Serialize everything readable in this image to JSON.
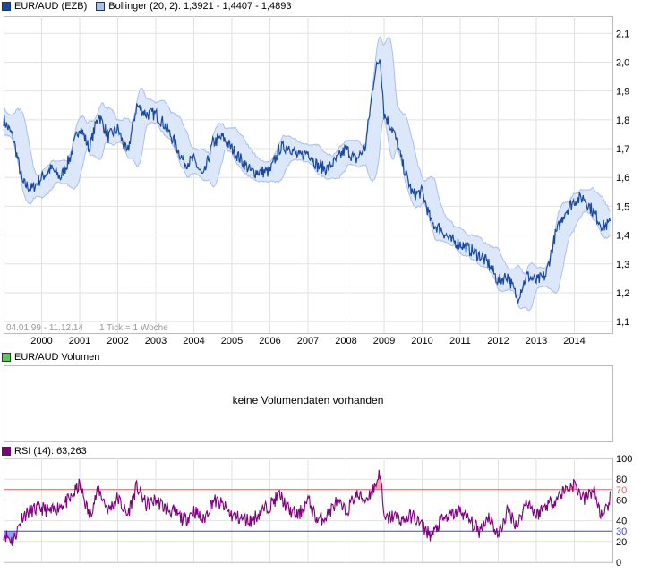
{
  "price_panel": {
    "legend": [
      {
        "label": "EUR/AUD (EZB)",
        "color": "#1a4aa0"
      },
      {
        "label": "Bollinger (20, 2): 1,3921 - 1,4407 - 1,4893",
        "color": "#a8c0ee"
      }
    ],
    "date_range": "04.01.99 - 11.12.14",
    "tick_note": "1 Tick = 1 Woche"
  },
  "volume_panel": {
    "legend": {
      "label": "EUR/AUD Volumen",
      "color": "#5ac85a"
    },
    "message": "keine Volumendaten vorhanden"
  },
  "rsi_panel": {
    "legend": {
      "label": "RSI (14): 63,263",
      "color": "#800080"
    }
  },
  "chart_data": [
    {
      "type": "line",
      "series": [
        {
          "name": "EUR/AUD (EZB)",
          "color": "#1a4aa0",
          "x": [
            1999.0,
            1999.25,
            1999.5,
            1999.75,
            2000.0,
            2000.25,
            2000.5,
            2000.75,
            2001.0,
            2001.25,
            2001.5,
            2001.75,
            2002.0,
            2002.25,
            2002.5,
            2002.75,
            2003.0,
            2003.25,
            2003.5,
            2003.75,
            2004.0,
            2004.25,
            2004.5,
            2004.75,
            2005.0,
            2005.25,
            2005.5,
            2005.75,
            2006.0,
            2006.25,
            2006.5,
            2006.75,
            2007.0,
            2007.25,
            2007.5,
            2007.75,
            2008.0,
            2008.25,
            2008.5,
            2008.75,
            2008.9,
            2009.0,
            2009.25,
            2009.5,
            2009.75,
            2010.0,
            2010.25,
            2010.5,
            2010.75,
            2011.0,
            2011.25,
            2011.5,
            2011.75,
            2012.0,
            2012.25,
            2012.5,
            2012.75,
            2013.0,
            2013.25,
            2013.5,
            2013.75,
            2014.0,
            2014.25,
            2014.5,
            2014.75,
            2014.95
          ],
          "values": [
            1.8,
            1.74,
            1.58,
            1.56,
            1.6,
            1.63,
            1.6,
            1.67,
            1.78,
            1.7,
            1.82,
            1.74,
            1.77,
            1.68,
            1.85,
            1.82,
            1.82,
            1.78,
            1.72,
            1.65,
            1.66,
            1.6,
            1.72,
            1.74,
            1.7,
            1.66,
            1.62,
            1.62,
            1.62,
            1.7,
            1.71,
            1.67,
            1.69,
            1.64,
            1.63,
            1.66,
            1.7,
            1.66,
            1.7,
            1.96,
            2.02,
            1.82,
            1.76,
            1.64,
            1.54,
            1.55,
            1.44,
            1.42,
            1.38,
            1.37,
            1.35,
            1.33,
            1.3,
            1.24,
            1.26,
            1.18,
            1.26,
            1.24,
            1.26,
            1.4,
            1.48,
            1.52,
            1.53,
            1.48,
            1.43,
            1.44
          ]
        },
        {
          "name": "Bollinger (20, 2)",
          "color": "#a8c0ee"
        }
      ],
      "ylim": [
        1.06,
        2.16
      ],
      "yticks": [
        "1,1",
        "1,2",
        "1,3",
        "1,4",
        "1,5",
        "1,6",
        "1,7",
        "1,8",
        "1,9",
        "2,0",
        "2,1"
      ],
      "ytick_values": [
        1.1,
        1.2,
        1.3,
        1.4,
        1.5,
        1.6,
        1.7,
        1.8,
        1.9,
        2.0,
        2.1
      ],
      "xlim": [
        1999.0,
        2015.0
      ],
      "xticks": [
        "2000",
        "2001",
        "2002",
        "2003",
        "2004",
        "2005",
        "2006",
        "2007",
        "2008",
        "2009",
        "2010",
        "2011",
        "2012",
        "2013",
        "2014"
      ],
      "xtick_values": [
        2000,
        2001,
        2002,
        2003,
        2004,
        2005,
        2006,
        2007,
        2008,
        2009,
        2010,
        2011,
        2012,
        2013,
        2014
      ],
      "grid": true
    },
    {
      "type": "line",
      "series": [
        {
          "name": "RSI (14)",
          "color": "#800080",
          "x": [
            1999.0,
            1999.25,
            1999.5,
            1999.75,
            2000.0,
            2000.25,
            2000.5,
            2000.75,
            2001.0,
            2001.25,
            2001.5,
            2001.75,
            2002.0,
            2002.25,
            2002.5,
            2002.75,
            2003.0,
            2003.25,
            2003.5,
            2003.75,
            2004.0,
            2004.25,
            2004.5,
            2004.75,
            2005.0,
            2005.25,
            2005.5,
            2005.75,
            2006.0,
            2006.25,
            2006.5,
            2006.75,
            2007.0,
            2007.25,
            2007.5,
            2007.75,
            2008.0,
            2008.25,
            2008.5,
            2008.75,
            2008.9,
            2009.0,
            2009.25,
            2009.5,
            2009.75,
            2010.0,
            2010.25,
            2010.5,
            2010.75,
            2011.0,
            2011.25,
            2011.5,
            2011.75,
            2012.0,
            2012.25,
            2012.5,
            2012.75,
            2013.0,
            2013.25,
            2013.5,
            2013.75,
            2014.0,
            2014.25,
            2014.5,
            2014.75,
            2014.95
          ],
          "values": [
            28,
            20,
            45,
            50,
            52,
            48,
            55,
            60,
            75,
            45,
            70,
            50,
            62,
            45,
            73,
            55,
            60,
            52,
            48,
            40,
            50,
            40,
            60,
            55,
            45,
            42,
            40,
            48,
            55,
            65,
            50,
            45,
            60,
            40,
            45,
            58,
            48,
            65,
            60,
            72,
            88,
            40,
            45,
            40,
            45,
            35,
            25,
            40,
            45,
            50,
            40,
            30,
            45,
            25,
            50,
            35,
            60,
            45,
            55,
            60,
            70,
            75,
            60,
            70,
            40,
            63.263
          ]
        }
      ],
      "ylim": [
        0,
        100
      ],
      "yticks": [
        "0",
        "20",
        "40",
        "60",
        "80",
        "100"
      ],
      "ytick_values": [
        0,
        20,
        40,
        60,
        80,
        100
      ],
      "levels": [
        {
          "value": 70,
          "label": "70",
          "color": "#e06060"
        },
        {
          "value": 30,
          "label": "30",
          "color": "#4040e0"
        }
      ],
      "xlim": [
        1999.0,
        2015.0
      ],
      "grid": true
    }
  ]
}
